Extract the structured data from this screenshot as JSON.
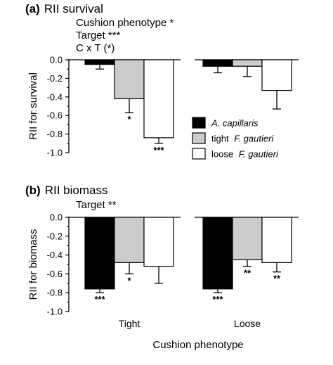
{
  "colors": {
    "A. capillaris": "#000000",
    "tight F. gautieri": "#cccccc",
    "loose F. gautieri": "#ffffff",
    "axis": "#000000"
  },
  "legend": [
    {
      "prefix": "",
      "italic": "A. capillaris"
    },
    {
      "prefix": "tight ",
      "italic": "F. gautieri"
    },
    {
      "prefix": "loose ",
      "italic": "F. gautieri"
    }
  ],
  "xlabel": "Cushion phenotype",
  "chart_data": [
    {
      "type": "bar",
      "letter": "(a)",
      "title": "RII survival",
      "stats": [
        "Cushion phenotype *",
        "Target ***",
        "C x T (*)"
      ],
      "ylabel": "RII for survival",
      "ylim": [
        -1.0,
        0.0
      ],
      "yticks": [
        "0.0",
        "-0.2",
        "-0.4",
        "-0.6",
        "-0.8",
        "-1.0"
      ],
      "categories": [
        "Tight",
        "Loose"
      ],
      "show_categories": false,
      "series": [
        {
          "name": "A. capillaris",
          "values": [
            -0.05,
            -0.07
          ],
          "errors": [
            0.05,
            0.07
          ],
          "sig": [
            "",
            ""
          ]
        },
        {
          "name": "tight F. gautieri",
          "values": [
            -0.42,
            -0.07
          ],
          "errors": [
            0.15,
            0.11
          ],
          "sig": [
            "*",
            ""
          ]
        },
        {
          "name": "loose F. gautieri",
          "values": [
            -0.84,
            -0.33
          ],
          "errors": [
            0.06,
            0.2
          ],
          "sig": [
            "***",
            ""
          ]
        }
      ]
    },
    {
      "type": "bar",
      "letter": "(b)",
      "title": "RII biomass",
      "stats": [
        "Target **"
      ],
      "ylabel": "RII for biomass",
      "ylim": [
        -1.0,
        0.0
      ],
      "yticks": [
        "0.0",
        "-0.2",
        "-0.4",
        "-0.6",
        "-0.8",
        "-1.0"
      ],
      "categories": [
        "Tight",
        "Loose"
      ],
      "show_categories": true,
      "series": [
        {
          "name": "A. capillaris",
          "values": [
            -0.76,
            -0.76
          ],
          "errors": [
            0.04,
            0.04
          ],
          "sig": [
            "***",
            "***"
          ]
        },
        {
          "name": "tight F. gautieri",
          "values": [
            -0.48,
            -0.45
          ],
          "errors": [
            0.12,
            0.07
          ],
          "sig": [
            "*",
            "**"
          ]
        },
        {
          "name": "loose F. gautieri",
          "values": [
            -0.52,
            -0.48
          ],
          "errors": [
            0.18,
            0.1
          ],
          "sig": [
            "",
            "**"
          ]
        }
      ]
    }
  ]
}
